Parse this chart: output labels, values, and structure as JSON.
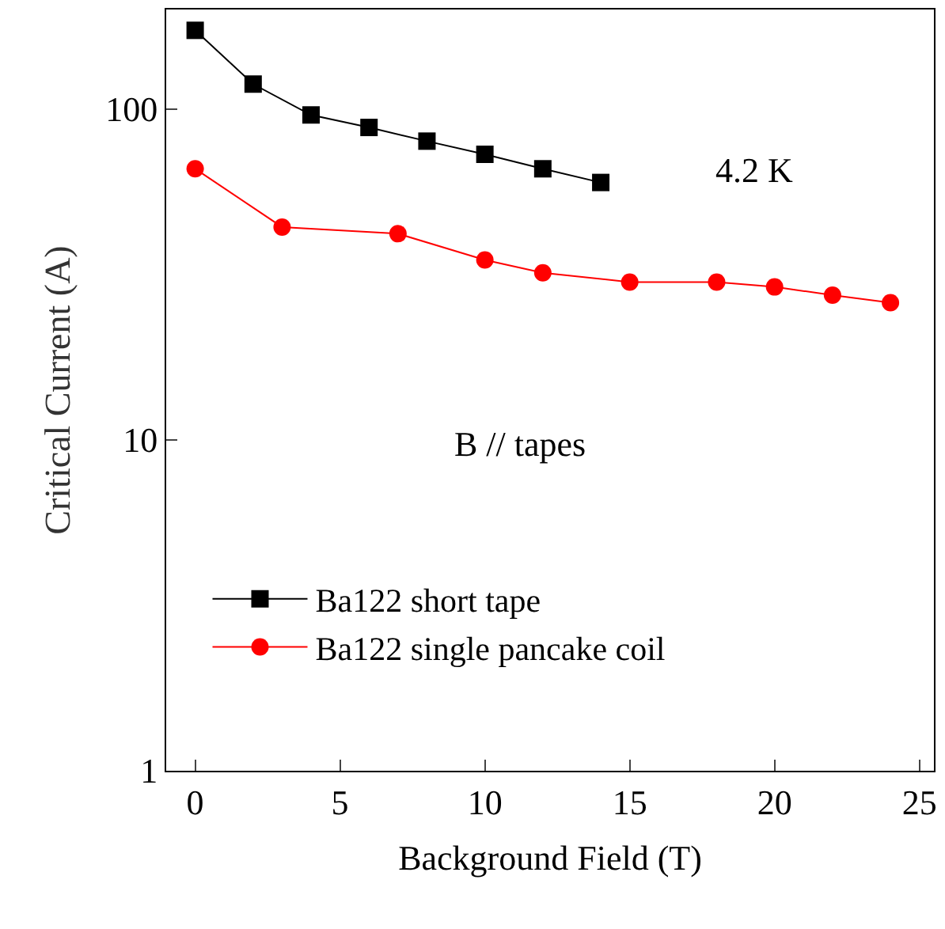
{
  "chart_data": {
    "type": "line",
    "xlabel": "Background Field (T)",
    "ylabel": "Critical Current (A)",
    "log": "y",
    "xlim": [
      -1,
      25.5
    ],
    "ylim": [
      1,
      200
    ],
    "xticks": [
      0,
      5,
      10,
      15,
      20,
      25
    ],
    "yticks": [
      1,
      10,
      100
    ],
    "legend": "bottom left",
    "annotations": [
      "4.2 K",
      "B // tapes"
    ],
    "series": [
      {
        "name": "Ba122 short tape",
        "color": "#000000",
        "marker": "square",
        "x": [
          0,
          2,
          4,
          6,
          8,
          10,
          12,
          14
        ],
        "values": [
          173,
          119,
          96,
          88,
          80,
          73,
          66,
          60
        ]
      },
      {
        "name": "Ba122 single pancake coil",
        "color": "#ff0000",
        "marker": "circle",
        "x": [
          0,
          3,
          7,
          10,
          12,
          15,
          18,
          20,
          22,
          24
        ],
        "values": [
          66,
          44,
          42,
          35,
          32,
          30,
          30,
          29,
          27.4,
          26
        ]
      }
    ]
  }
}
